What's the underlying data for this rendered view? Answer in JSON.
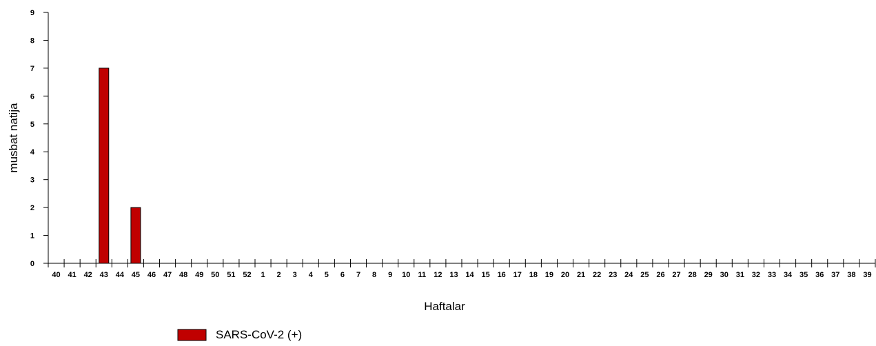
{
  "chart_data": {
    "type": "bar",
    "xlabel": "Haftalar",
    "ylabel": "musbat natija",
    "ylim": [
      0,
      9
    ],
    "yticks": [
      0,
      1,
      2,
      3,
      4,
      5,
      6,
      7,
      8,
      9
    ],
    "grid": false,
    "legend_position": "bottom-left",
    "categories": [
      "40",
      "41",
      "42",
      "43",
      "44",
      "45",
      "46",
      "47",
      "48",
      "49",
      "50",
      "51",
      "52",
      "1",
      "2",
      "3",
      "4",
      "5",
      "6",
      "7",
      "8",
      "9",
      "10",
      "11",
      "12",
      "13",
      "14",
      "15",
      "16",
      "17",
      "18",
      "19",
      "20",
      "21",
      "22",
      "23",
      "24",
      "25",
      "26",
      "27",
      "28",
      "29",
      "30",
      "31",
      "32",
      "33",
      "34",
      "35",
      "36",
      "37",
      "38",
      "39"
    ],
    "series": [
      {
        "name": "SARS-CoV-2 (+)",
        "color": "#c00000",
        "values": [
          0,
          0,
          0,
          7,
          0,
          2,
          0,
          0,
          0,
          0,
          0,
          0,
          0,
          0,
          0,
          0,
          0,
          0,
          0,
          0,
          0,
          0,
          0,
          0,
          0,
          0,
          0,
          0,
          0,
          0,
          0,
          0,
          0,
          0,
          0,
          0,
          0,
          0,
          0,
          0,
          0,
          0,
          0,
          0,
          0,
          0,
          0,
          0,
          0,
          0,
          0,
          0
        ]
      }
    ]
  }
}
